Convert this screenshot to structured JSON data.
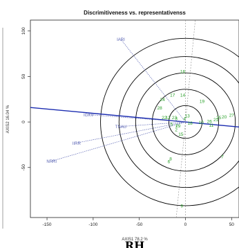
{
  "chart_data": {
    "type": "scatter",
    "title": "Discrimitiveness vs. representativenss",
    "xlabel": "AXIS1 78.2 %",
    "ylabel": "AXIS2 16.04 %",
    "xlim": [
      -168,
      58
    ],
    "ylim": [
      -105,
      112
    ],
    "xticks": [
      -150,
      -100,
      -50,
      0,
      50
    ],
    "yticks": [
      -50,
      0,
      50,
      100
    ],
    "grid": false,
    "average_environment_axis": {
      "slope": -0.095,
      "intercept": 0
    },
    "concentric_circle_radii": [
      18,
      36,
      54,
      72,
      92
    ],
    "environment_vectors": [
      {
        "label": "IARI",
        "x": -70,
        "y": 91
      },
      {
        "label": "IGKV",
        "x": -105,
        "y": 8
      },
      {
        "label": "TNAU",
        "x": -70,
        "y": -5
      },
      {
        "label": "IIRR",
        "x": -118,
        "y": -23
      },
      {
        "label": "NRRI",
        "x": -145,
        "y": -43
      }
    ],
    "genotypes": [
      {
        "label": "1",
        "x": -10,
        "y": -4
      },
      {
        "label": "2",
        "x": -10,
        "y": -8
      },
      {
        "label": "3",
        "x": -10,
        "y": 4
      },
      {
        "label": "4",
        "x": -1,
        "y": 4
      },
      {
        "label": "5",
        "x": -15,
        "y": -2
      },
      {
        "label": "6",
        "x": -18,
        "y": -43
      },
      {
        "label": "7",
        "x": 40,
        "y": -38
      },
      {
        "label": "8",
        "x": -16,
        "y": -40
      },
      {
        "label": "9",
        "x": -4,
        "y": -92
      },
      {
        "label": "10",
        "x": 17,
        "y": 0
      },
      {
        "label": "11",
        "x": 28,
        "y": -3
      },
      {
        "label": "12",
        "x": -19,
        "y": 5
      },
      {
        "label": "13",
        "x": 2,
        "y": 7
      },
      {
        "label": "14",
        "x": -3,
        "y": 30
      },
      {
        "label": "15",
        "x": -5,
        "y": -13
      },
      {
        "label": "16",
        "x": -3,
        "y": 56
      },
      {
        "label": "17",
        "x": -14,
        "y": 30
      },
      {
        "label": "18",
        "x": 5,
        "y": -1
      },
      {
        "label": "19",
        "x": 18,
        "y": 23
      },
      {
        "label": "20",
        "x": 42,
        "y": 6
      },
      {
        "label": "21",
        "x": 33,
        "y": 3
      },
      {
        "label": "22",
        "x": -23,
        "y": 5
      },
      {
        "label": "23",
        "x": -12,
        "y": 5
      },
      {
        "label": "24",
        "x": -25,
        "y": 25
      },
      {
        "label": "25",
        "x": 36,
        "y": 5
      },
      {
        "label": "26",
        "x": 26,
        "y": 1
      },
      {
        "label": "27",
        "x": 50,
        "y": 8
      },
      {
        "label": "28",
        "x": -28,
        "y": 16
      },
      {
        "label": "29",
        "x": -8,
        "y": -4
      }
    ],
    "colors": {
      "axis_line": "#1a2bb0",
      "environment": "#5a64b4",
      "genotype": "#2aa12a",
      "circles": "#000000",
      "reference_lines": "#888888"
    }
  },
  "footer": {
    "label": "RH"
  }
}
